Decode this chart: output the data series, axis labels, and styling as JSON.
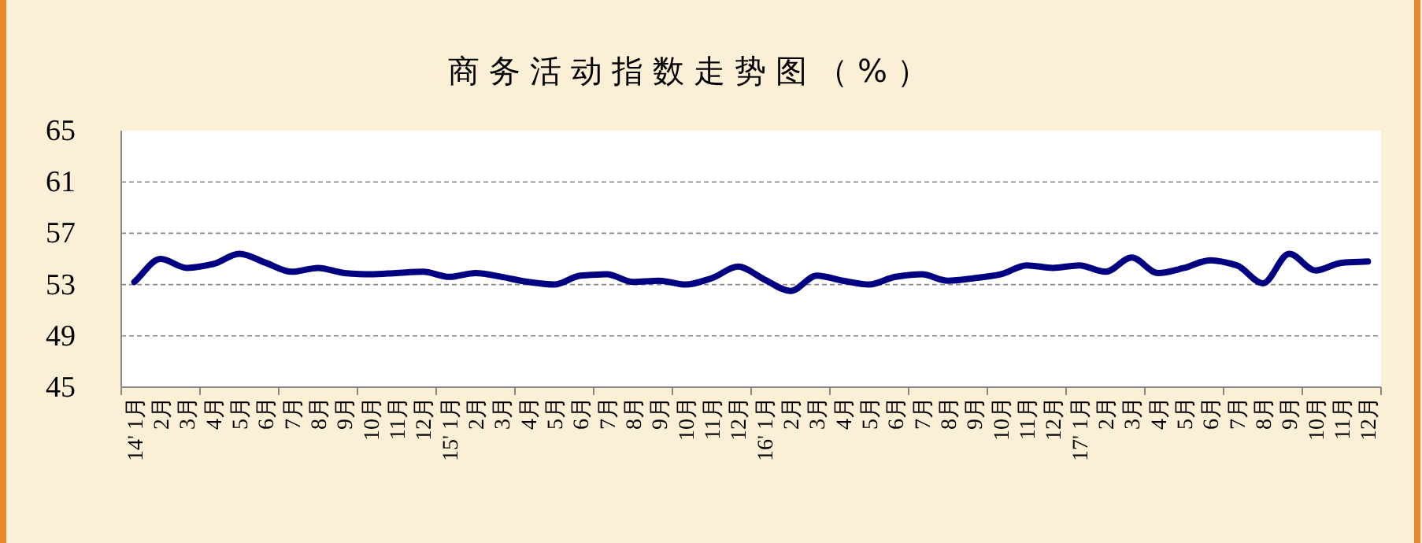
{
  "chart_data": {
    "type": "line",
    "title": "商务活动指数走势图（%）",
    "categories": [
      "14' 1月",
      "2月",
      "3月",
      "4月",
      "5月",
      "6月",
      "7月",
      "8月",
      "9月",
      "10月",
      "11月",
      "12月",
      "15' 1月",
      "2月",
      "3月",
      "4月",
      "5月",
      "6月",
      "7月",
      "8月",
      "9月",
      "10月",
      "11月",
      "12月",
      "16' 1月",
      "2月",
      "3月",
      "4月",
      "5月",
      "6月",
      "7月",
      "8月",
      "9月",
      "10月",
      "11月",
      "12月",
      "17' 1月",
      "2月",
      "3月",
      "4月",
      "5月",
      "6月",
      "7月",
      "8月",
      "9月",
      "10月",
      "11月",
      "12月"
    ],
    "series": [
      {
        "color": "#000080",
        "values": [
          53.2,
          55.0,
          54.3,
          54.6,
          55.4,
          54.7,
          54.0,
          54.3,
          53.9,
          53.8,
          53.9,
          54.0,
          53.6,
          53.9,
          53.6,
          53.2,
          53.0,
          53.7,
          53.8,
          53.2,
          53.3,
          53.0,
          53.5,
          54.4,
          53.4,
          52.5,
          53.7,
          53.3,
          53.0,
          53.6,
          53.8,
          53.3,
          53.5,
          53.8,
          54.5,
          54.3,
          54.5,
          54.0,
          55.1,
          53.9,
          54.3,
          54.9,
          54.5,
          53.1,
          55.4,
          54.1,
          54.7,
          54.8
        ]
      }
    ],
    "ylim": [
      45,
      65
    ],
    "yticks": [
      45,
      49,
      53,
      57,
      61,
      65
    ],
    "grid": "y"
  }
}
